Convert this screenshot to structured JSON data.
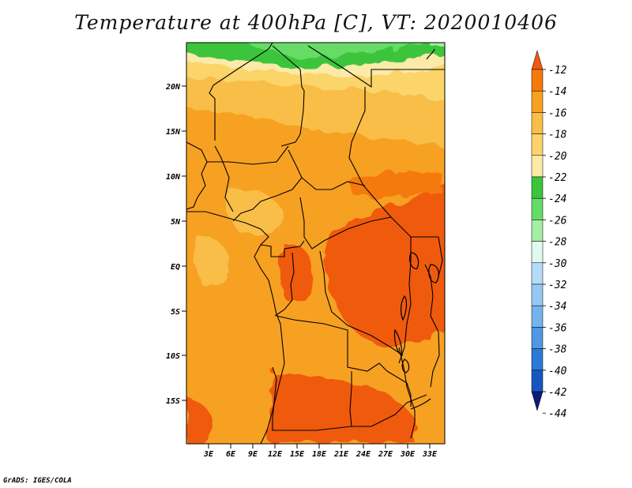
{
  "title": "Temperature at 400hPa [C], VT: 2020010406",
  "credit": "GrADS: IGES/COLA",
  "map": {
    "lat_ticks": [
      "20N",
      "15N",
      "10N",
      "5N",
      "EQ",
      "5S",
      "10S",
      "15S"
    ],
    "lon_ticks": [
      "3E",
      "6E",
      "9E",
      "12E",
      "15E",
      "18E",
      "21E",
      "24E",
      "27E",
      "30E",
      "33E"
    ]
  },
  "colorbar": {
    "labels": [
      "-12",
      "-14",
      "-16",
      "-18",
      "-20",
      "-22",
      "-24",
      "-26",
      "-28",
      "-30",
      "-32",
      "-34",
      "-36",
      "-38",
      "-40",
      "-42",
      "-44"
    ],
    "colors": [
      "#f05a10",
      "#f57a0a",
      "#f7a121",
      "#f9be47",
      "#fbd46b",
      "#fbeaa8",
      "#3cc43c",
      "#66dc66",
      "#a5eea5",
      "#e1f9ef",
      "#b4dcf7",
      "#95c8f2",
      "#74b4ec",
      "#4f98e2",
      "#2c78d6",
      "#1656c0",
      "#0d1c76"
    ]
  }
}
